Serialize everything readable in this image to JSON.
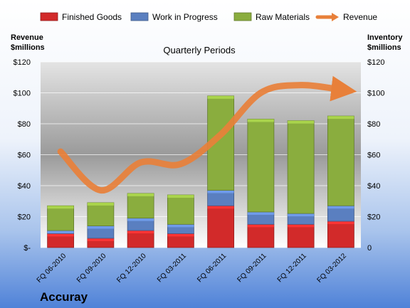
{
  "chart_data": {
    "type": "bar",
    "stacked": true,
    "subtitle": "Quarterly Periods",
    "company": "Accuray",
    "left_axis_label": [
      "Revenue",
      "$millions"
    ],
    "right_axis_label": [
      "Inventory",
      "$millions"
    ],
    "ylim": [
      0,
      120
    ],
    "left_ticks": [
      "$-",
      "$20",
      "$40",
      "$60",
      "$80",
      "$100",
      "$120"
    ],
    "right_ticks": [
      "0",
      "$20",
      "$40",
      "$60",
      "$80",
      "$100",
      "$120"
    ],
    "tick_values": [
      0,
      20,
      40,
      60,
      80,
      100,
      120
    ],
    "categories": [
      "FQ 06-2010",
      "FQ 09-2010",
      "FQ 12-2010",
      "FQ 03-2011",
      "FQ 06-2011",
      "FQ 09-2011",
      "FQ 12-2011",
      "FQ 03-2012"
    ],
    "series": [
      {
        "name": "Finished Goods",
        "values": [
          9,
          6,
          11,
          9,
          27,
          15,
          15,
          17
        ],
        "color": "#d22a2a"
      },
      {
        "name": "Work in Progress",
        "values": [
          2,
          8,
          8,
          6,
          10,
          8,
          7,
          10
        ],
        "color": "#5a7fc0"
      },
      {
        "name": "Raw Materials",
        "values": [
          16,
          15,
          16,
          19,
          61,
          60,
          60,
          58
        ],
        "color": "#8aad3e"
      }
    ],
    "line": {
      "name": "Revenue",
      "values": [
        62,
        37,
        55,
        54,
        73,
        100,
        105,
        102
      ],
      "color": "#e8803a"
    },
    "legend_position": "top",
    "grid": true
  }
}
